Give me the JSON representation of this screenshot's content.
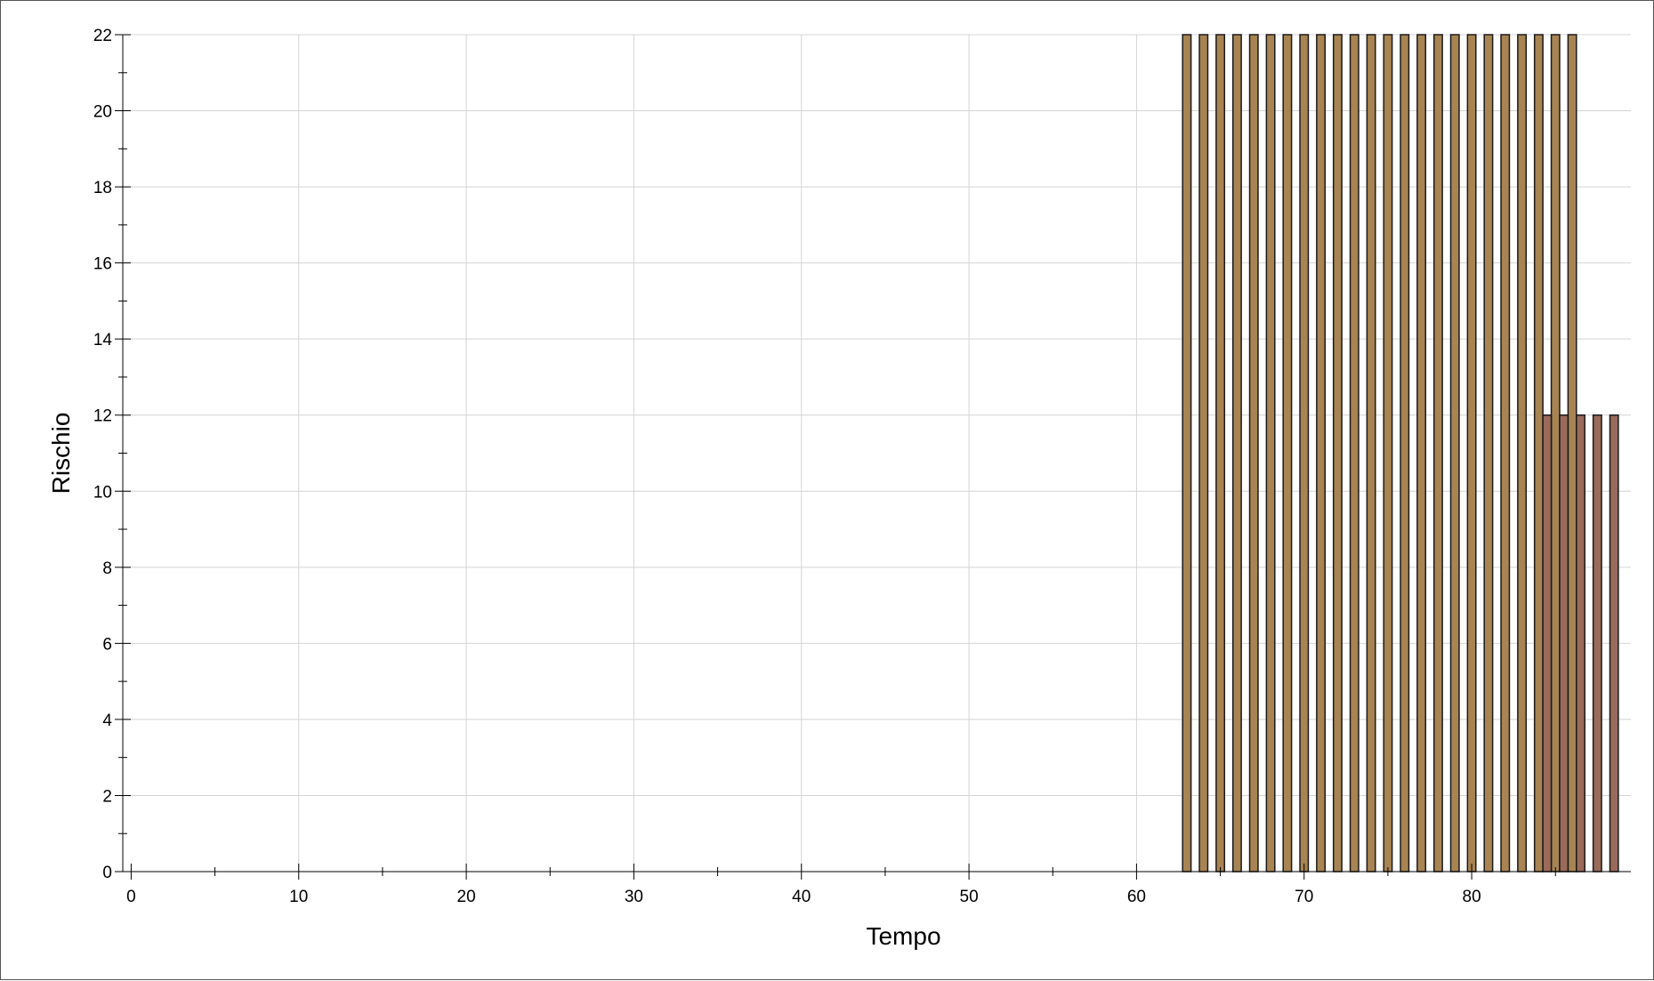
{
  "chart_data": {
    "type": "bar",
    "title": "",
    "xlabel": "Tempo",
    "ylabel": "Rischio",
    "xlim": [
      -0.5,
      89.5
    ],
    "ylim": [
      0,
      22
    ],
    "x_ticks": [
      0,
      10,
      20,
      30,
      40,
      50,
      60,
      70,
      80
    ],
    "y_ticks": [
      0,
      2,
      4,
      6,
      8,
      10,
      12,
      14,
      16,
      18,
      20,
      22
    ],
    "grid": true,
    "legend": "none",
    "bar_width": 0.5,
    "series": [
      {
        "color": "#a88453",
        "x": [
          63,
          64,
          65,
          66,
          67,
          68,
          69,
          70,
          71,
          72,
          73,
          74,
          75,
          76,
          77,
          78,
          79,
          80,
          81,
          82,
          83,
          84,
          85,
          86
        ],
        "values": [
          22,
          22,
          22,
          22,
          22,
          22,
          22,
          22,
          22,
          22,
          22,
          22,
          22,
          22,
          22,
          22,
          22,
          22,
          22,
          22,
          22,
          22,
          22,
          22
        ]
      },
      {
        "color": "#9a6a5a",
        "x": [
          84.5,
          85.5,
          86.5,
          87.5,
          88.5
        ],
        "values": [
          12,
          12,
          12,
          12,
          12
        ]
      }
    ]
  }
}
